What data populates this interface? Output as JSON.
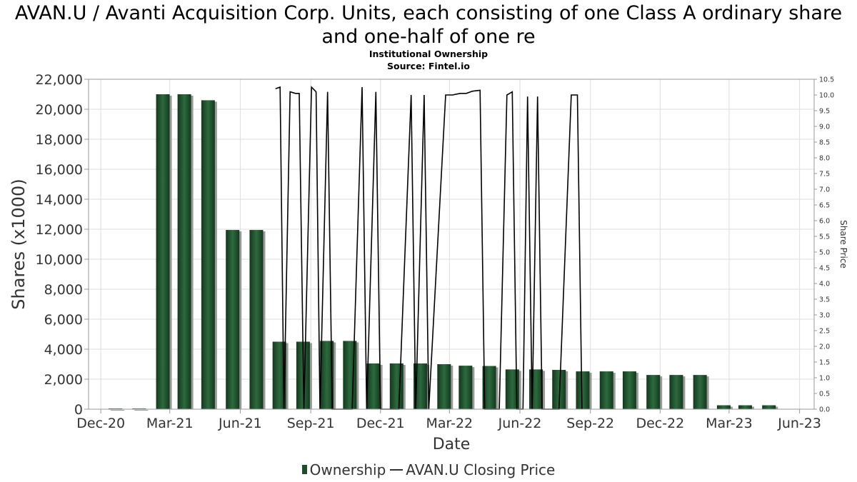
{
  "title": "AVAN.U / Avanti Acquisition Corp. Units, each consisting of one Class A ordinary share and one-half of one re",
  "subtitle_lines": [
    "Institutional Ownership",
    "Source: Fintel.io"
  ],
  "legend": {
    "ownership": "Ownership",
    "price": "AVAN.U Closing Price"
  },
  "colors": {
    "bar": "#1f4d2b",
    "bar_shadow": "#999999",
    "line": "#000000",
    "grid": "#dddddd"
  },
  "chart_data": {
    "type": "bar",
    "xlabel": "Date",
    "ylabel": "Shares (x1000)",
    "y2label": "Share Price",
    "ylim": [
      0,
      22000
    ],
    "y2lim": [
      0,
      10.5
    ],
    "yticks": [
      "0",
      "2,000",
      "4,000",
      "6,000",
      "8,000",
      "10,000",
      "12,000",
      "14,000",
      "16,000",
      "18,000",
      "20,000",
      "22,000"
    ],
    "y2ticks": [
      "0.0",
      "0.5",
      "1.0",
      "1.5",
      "2.0",
      "2.5",
      "3.0",
      "3.5",
      "4.0",
      "4.5",
      "5.0",
      "5.5",
      "6.0",
      "6.5",
      "7.0",
      "7.5",
      "8.0",
      "8.5",
      "9.0",
      "9.5",
      "10.0",
      "10.5"
    ],
    "xlim": [
      "2020-11-15",
      "2023-06-20"
    ],
    "xticks": [
      {
        "label": "Dec-20",
        "date": "2020-12-01"
      },
      {
        "label": "Mar-21",
        "date": "2021-03-01"
      },
      {
        "label": "Jun-21",
        "date": "2021-06-01"
      },
      {
        "label": "Sep-21",
        "date": "2021-09-01"
      },
      {
        "label": "Dec-21",
        "date": "2021-12-01"
      },
      {
        "label": "Mar-22",
        "date": "2022-03-01"
      },
      {
        "label": "Jun-22",
        "date": "2022-06-01"
      },
      {
        "label": "Sep-22",
        "date": "2022-09-01"
      },
      {
        "label": "Dec-22",
        "date": "2022-12-01"
      },
      {
        "label": "Mar-23",
        "date": "2023-03-01"
      },
      {
        "label": "Jun-23",
        "date": "2023-06-01"
      }
    ],
    "grid": true,
    "legend_position": "bottom",
    "series": [
      {
        "name": "Ownership",
        "type": "bar",
        "points": [
          {
            "date": "2020-12-20",
            "value": 0
          },
          {
            "date": "2021-01-20",
            "value": 30
          },
          {
            "date": "2021-02-20",
            "value": 21000
          },
          {
            "date": "2021-03-20",
            "value": 21000
          },
          {
            "date": "2021-04-20",
            "value": 20600
          },
          {
            "date": "2021-05-22",
            "value": 11950
          },
          {
            "date": "2021-06-22",
            "value": 11950
          },
          {
            "date": "2021-07-22",
            "value": 4500
          },
          {
            "date": "2021-08-22",
            "value": 4500
          },
          {
            "date": "2021-09-22",
            "value": 4550
          },
          {
            "date": "2021-10-22",
            "value": 4550
          },
          {
            "date": "2021-11-22",
            "value": 3050
          },
          {
            "date": "2021-12-22",
            "value": 3050
          },
          {
            "date": "2022-01-22",
            "value": 3050
          },
          {
            "date": "2022-02-22",
            "value": 3000
          },
          {
            "date": "2022-03-22",
            "value": 2900
          },
          {
            "date": "2022-04-22",
            "value": 2880
          },
          {
            "date": "2022-05-22",
            "value": 2650
          },
          {
            "date": "2022-06-22",
            "value": 2650
          },
          {
            "date": "2022-07-22",
            "value": 2620
          },
          {
            "date": "2022-08-22",
            "value": 2520
          },
          {
            "date": "2022-09-22",
            "value": 2520
          },
          {
            "date": "2022-10-22",
            "value": 2520
          },
          {
            "date": "2022-11-22",
            "value": 2280
          },
          {
            "date": "2022-12-22",
            "value": 2280
          },
          {
            "date": "2023-01-22",
            "value": 2280
          },
          {
            "date": "2023-02-22",
            "value": 260
          },
          {
            "date": "2023-03-22",
            "value": 260
          },
          {
            "date": "2023-04-22",
            "value": 260
          }
        ]
      },
      {
        "name": "AVAN.U Closing Price",
        "type": "line",
        "points": [
          {
            "date": "2021-07-17",
            "value": 10.2
          },
          {
            "date": "2021-07-23",
            "value": 10.25
          },
          {
            "date": "2021-07-28",
            "value": 0
          },
          {
            "date": "2021-08-05",
            "value": 10.1
          },
          {
            "date": "2021-08-12",
            "value": 10.05
          },
          {
            "date": "2021-08-17",
            "value": 10.05
          },
          {
            "date": "2021-08-23",
            "value": 0
          },
          {
            "date": "2021-09-02",
            "value": 10.25
          },
          {
            "date": "2021-09-08",
            "value": 10.1
          },
          {
            "date": "2021-09-13",
            "value": 0
          },
          {
            "date": "2021-09-23",
            "value": 10.1
          },
          {
            "date": "2021-09-29",
            "value": 0
          },
          {
            "date": "2021-10-25",
            "value": 0
          },
          {
            "date": "2021-11-07",
            "value": 10.25
          },
          {
            "date": "2021-11-13",
            "value": 0
          },
          {
            "date": "2021-11-25",
            "value": 10.1
          },
          {
            "date": "2021-12-01",
            "value": 0
          },
          {
            "date": "2021-12-25",
            "value": 0
          },
          {
            "date": "2022-01-10",
            "value": 10.0
          },
          {
            "date": "2022-01-16",
            "value": 0
          },
          {
            "date": "2022-01-27",
            "value": 10.0
          },
          {
            "date": "2022-02-02",
            "value": 0
          },
          {
            "date": "2022-02-24",
            "value": 10.0
          },
          {
            "date": "2022-03-05",
            "value": 10.0
          },
          {
            "date": "2022-03-15",
            "value": 10.05
          },
          {
            "date": "2022-03-23",
            "value": 10.05
          },
          {
            "date": "2022-03-31",
            "value": 10.12
          },
          {
            "date": "2022-04-10",
            "value": 10.15
          },
          {
            "date": "2022-04-16",
            "value": 0
          },
          {
            "date": "2022-05-05",
            "value": 0
          },
          {
            "date": "2022-05-15",
            "value": 10.0
          },
          {
            "date": "2022-05-22",
            "value": 10.1
          },
          {
            "date": "2022-05-28",
            "value": 0
          },
          {
            "date": "2022-06-05",
            "value": 0
          },
          {
            "date": "2022-06-11",
            "value": 9.95
          },
          {
            "date": "2022-06-17",
            "value": 0
          },
          {
            "date": "2022-06-24",
            "value": 9.95
          },
          {
            "date": "2022-06-30",
            "value": 0
          },
          {
            "date": "2022-07-22",
            "value": 0
          },
          {
            "date": "2022-08-07",
            "value": 10.0
          },
          {
            "date": "2022-08-15",
            "value": 10.0
          },
          {
            "date": "2022-08-21",
            "value": 0
          }
        ]
      }
    ]
  }
}
